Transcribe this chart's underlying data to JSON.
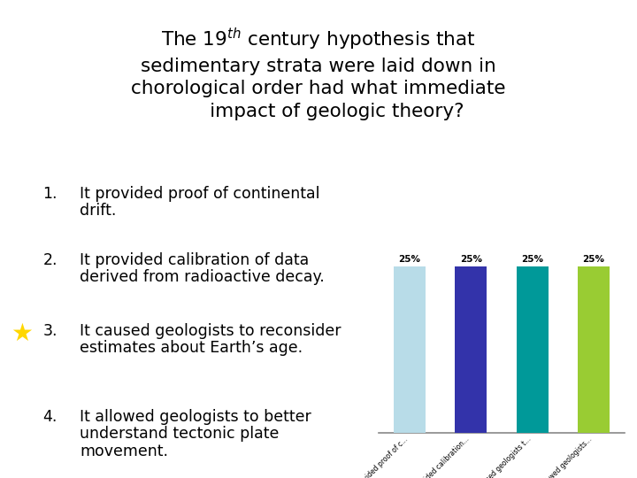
{
  "title_full": "The 19$^{th}$ century hypothesis that\nsedimentary strata were laid down in\nchorological order had what immediate\n      impact of geologic theory?",
  "items": [
    {
      "num": "1.",
      "line1": "It provided proof of continental",
      "line2": "drift.",
      "star": false
    },
    {
      "num": "2.",
      "line1": "It provided calibration of data",
      "line2": "derived from radioactive decay.",
      "star": false
    },
    {
      "num": "3.",
      "line1": "It caused geologists to reconsider",
      "line2": "estimates about Earth’s age.",
      "star": true
    },
    {
      "num": "4.",
      "line1": "It allowed geologists to better",
      "line2": "understand tectonic plate",
      "line3": "movement.",
      "star": false
    }
  ],
  "bar_values": [
    25,
    25,
    25,
    25
  ],
  "bar_labels": [
    "25%",
    "25%",
    "25%",
    "25%"
  ],
  "bar_colors": [
    "#b8dce8",
    "#3333aa",
    "#009999",
    "#99cc33"
  ],
  "bar_tick_labels": [
    "It provided proof of c...",
    "It provided calibration...",
    "It caused geologists t...",
    "It allowed geologists..."
  ],
  "background_color": "#ffffff",
  "text_color": "#000000",
  "star_color": "#FFD700",
  "title_fontsize": 15.5,
  "item_fontsize": 12.5,
  "bar_label_fontsize": 7.5
}
